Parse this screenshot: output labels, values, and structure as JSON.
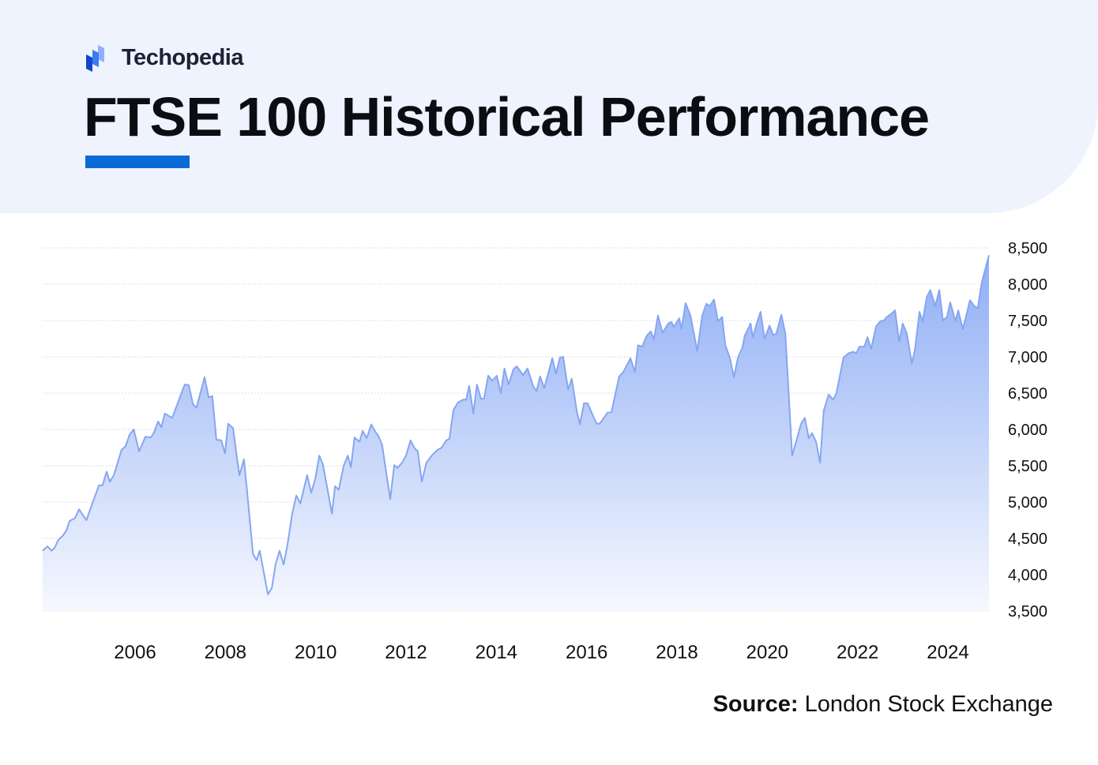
{
  "brand": {
    "name": "Techopedia",
    "icon": "techopedia-logo-icon"
  },
  "title": "FTSE 100 Historical Performance",
  "source": {
    "label": "Source:",
    "text": "London Stock Exchange"
  },
  "colors": {
    "header_bg": "#eef3fd",
    "accent": "#0a6bd6",
    "line": "#86a6f0",
    "fill_top": "#8eaef5",
    "fill_bottom": "#f6f8fe"
  },
  "chart_data": {
    "type": "area",
    "title": "",
    "xlabel": "",
    "ylabel": "",
    "ylim": [
      3500,
      8500
    ],
    "xlim": [
      2003.95,
      2024.91
    ],
    "grid": true,
    "y_axis_position": "right",
    "yticks": [
      "8,500",
      "8,000",
      "7,500",
      "7,000",
      "6,500",
      "6,000",
      "5,500",
      "5,000",
      "4,500",
      "4,000",
      "3,500"
    ],
    "ytick_values": [
      8500,
      8000,
      7500,
      7000,
      6500,
      6000,
      5500,
      5000,
      4500,
      4000,
      3500
    ],
    "xticks": [
      "2006",
      "2008",
      "2010",
      "2012",
      "2014",
      "2016",
      "2018",
      "2020",
      "2022",
      "2024"
    ],
    "xtick_values": [
      2006,
      2008,
      2010,
      2012,
      2014,
      2016,
      2018,
      2020,
      2022,
      2024
    ],
    "series": [
      {
        "x": [
          2003.95,
          2004.06,
          2004.15,
          2004.22,
          2004.3,
          2004.39,
          2004.48,
          2004.55,
          2004.67,
          2004.76,
          2004.92,
          2005.07,
          2005.2,
          2005.28,
          2005.37,
          2005.44,
          2005.53,
          2005.7,
          2005.79,
          2005.88,
          2005.97,
          2006.09,
          2006.23,
          2006.35,
          2006.42,
          2006.51,
          2006.58,
          2006.66,
          2006.82,
          2007.1,
          2007.19,
          2007.28,
          2007.36,
          2007.54,
          2007.63,
          2007.71,
          2007.8,
          2007.91,
          2007.99,
          2008.06,
          2008.17,
          2008.26,
          2008.31,
          2008.41,
          2008.48,
          2008.61,
          2008.69,
          2008.76,
          2008.94,
          2009.03,
          2009.11,
          2009.2,
          2009.29,
          2009.38,
          2009.48,
          2009.57,
          2009.66,
          2009.81,
          2009.9,
          2009.99,
          2010.08,
          2010.16,
          2010.36,
          2010.43,
          2010.51,
          2010.62,
          2010.71,
          2010.78,
          2010.86,
          2010.97,
          2011.04,
          2011.13,
          2011.23,
          2011.32,
          2011.39,
          2011.47,
          2011.65,
          2011.74,
          2011.81,
          2011.91,
          2012.0,
          2012.1,
          2012.19,
          2012.26,
          2012.35,
          2012.45,
          2012.58,
          2012.7,
          2012.79,
          2012.89,
          2012.96,
          2013.05,
          2013.15,
          2013.26,
          2013.33,
          2013.4,
          2013.49,
          2013.57,
          2013.66,
          2013.73,
          2013.82,
          2013.91,
          2014.01,
          2014.1,
          2014.18,
          2014.27,
          2014.38,
          2014.45,
          2014.59,
          2014.69,
          2014.82,
          2014.89,
          2014.97,
          2015.06,
          2015.24,
          2015.32,
          2015.41,
          2015.48,
          2015.59,
          2015.67,
          2015.78,
          2015.85,
          2015.94,
          2016.02,
          2016.22,
          2016.29,
          2016.46,
          2016.55,
          2016.72,
          2016.81,
          2016.97,
          2017.07,
          2017.14,
          2017.23,
          2017.33,
          2017.42,
          2017.49,
          2017.58,
          2017.68,
          2017.81,
          2017.88,
          2017.93,
          2018.05,
          2018.1,
          2018.19,
          2018.3,
          2018.45,
          2018.56,
          2018.65,
          2018.73,
          2018.82,
          2018.91,
          2019.0,
          2019.07,
          2019.17,
          2019.26,
          2019.35,
          2019.45,
          2019.5,
          2019.63,
          2019.68,
          2019.78,
          2019.85,
          2019.94,
          2020.05,
          2020.13,
          2020.2,
          2020.31,
          2020.4,
          2020.55,
          2020.75,
          2020.83,
          2020.92,
          2020.99,
          2021.08,
          2021.17,
          2021.25,
          2021.36,
          2021.46,
          2021.53,
          2021.69,
          2021.8,
          2021.9,
          2021.97,
          2022.04,
          2022.15,
          2022.22,
          2022.3,
          2022.41,
          2022.5,
          2022.58,
          2022.65,
          2022.74,
          2022.83,
          2022.92,
          2023.0,
          2023.09,
          2023.2,
          2023.27,
          2023.37,
          2023.44,
          2023.53,
          2023.61,
          2023.72,
          2023.81,
          2023.89,
          2023.98,
          2024.05,
          2024.17,
          2024.23,
          2024.33,
          2024.49,
          2024.58,
          2024.66,
          2024.75,
          2024.91
        ],
        "y": [
          4330,
          4390,
          4330,
          4370,
          4480,
          4530,
          4610,
          4740,
          4780,
          4900,
          4750,
          5010,
          5230,
          5230,
          5420,
          5280,
          5370,
          5720,
          5770,
          5930,
          6000,
          5700,
          5900,
          5890,
          5960,
          6110,
          6030,
          6220,
          6160,
          6620,
          6610,
          6350,
          6300,
          6720,
          6440,
          6460,
          5860,
          5850,
          5670,
          6080,
          6020,
          5590,
          5370,
          5590,
          5150,
          4290,
          4200,
          4330,
          3730,
          3820,
          4140,
          4330,
          4140,
          4430,
          4840,
          5090,
          4980,
          5370,
          5130,
          5320,
          5640,
          5520,
          4840,
          5220,
          5170,
          5500,
          5640,
          5480,
          5890,
          5830,
          5980,
          5880,
          6070,
          5970,
          5910,
          5790,
          5040,
          5510,
          5470,
          5540,
          5640,
          5850,
          5740,
          5700,
          5280,
          5540,
          5650,
          5720,
          5750,
          5850,
          5870,
          6270,
          6370,
          6410,
          6410,
          6600,
          6220,
          6620,
          6420,
          6430,
          6740,
          6670,
          6740,
          6500,
          6840,
          6620,
          6830,
          6870,
          6750,
          6840,
          6590,
          6530,
          6730,
          6570,
          6980,
          6770,
          6990,
          7000,
          6550,
          6700,
          6260,
          6070,
          6360,
          6360,
          6080,
          6080,
          6230,
          6240,
          6730,
          6790,
          6980,
          6790,
          7160,
          7140,
          7290,
          7350,
          7240,
          7570,
          7330,
          7460,
          7480,
          7410,
          7530,
          7380,
          7740,
          7570,
          7080,
          7570,
          7730,
          7700,
          7790,
          7490,
          7550,
          7160,
          6990,
          6720,
          6990,
          7130,
          7290,
          7460,
          7270,
          7490,
          7620,
          7250,
          7430,
          7300,
          7320,
          7580,
          7320,
          5640,
          6080,
          6160,
          5880,
          5950,
          5830,
          5540,
          6260,
          6480,
          6410,
          6500,
          6990,
          7050,
          7070,
          7050,
          7140,
          7140,
          7270,
          7110,
          7420,
          7490,
          7500,
          7550,
          7590,
          7640,
          7210,
          7460,
          7320,
          6910,
          7100,
          7620,
          7490,
          7820,
          7920,
          7700,
          7920,
          7500,
          7550,
          7750,
          7490,
          7640,
          7380,
          7780,
          7700,
          7670,
          8030,
          8400
        ]
      }
    ]
  }
}
